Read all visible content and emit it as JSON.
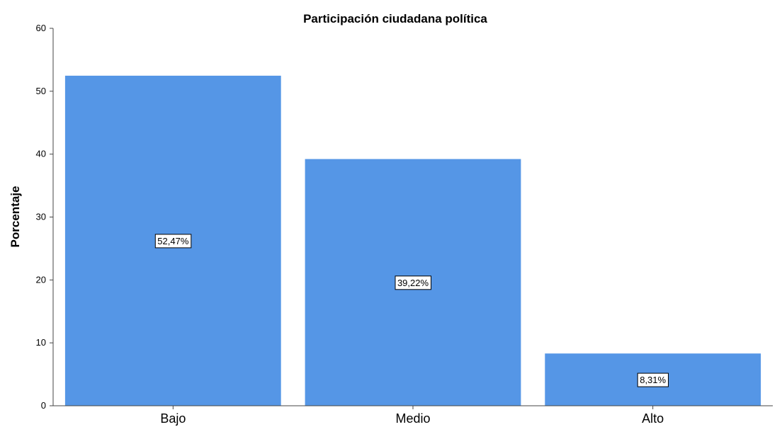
{
  "chart_data": {
    "type": "bar",
    "title": "Participación ciudadana política",
    "xlabel": "",
    "ylabel": "Porcentaje",
    "categories": [
      "Bajo",
      "Medio",
      "Alto"
    ],
    "values": [
      52.47,
      39.22,
      8.31
    ],
    "data_labels": [
      "52,47%",
      "39,22%",
      "8,31%"
    ],
    "ylim": [
      0,
      60
    ],
    "y_ticks": [
      0,
      10,
      20,
      30,
      40,
      50,
      60
    ],
    "grid": false,
    "legend": "none",
    "bar_color": "#5596e6"
  }
}
